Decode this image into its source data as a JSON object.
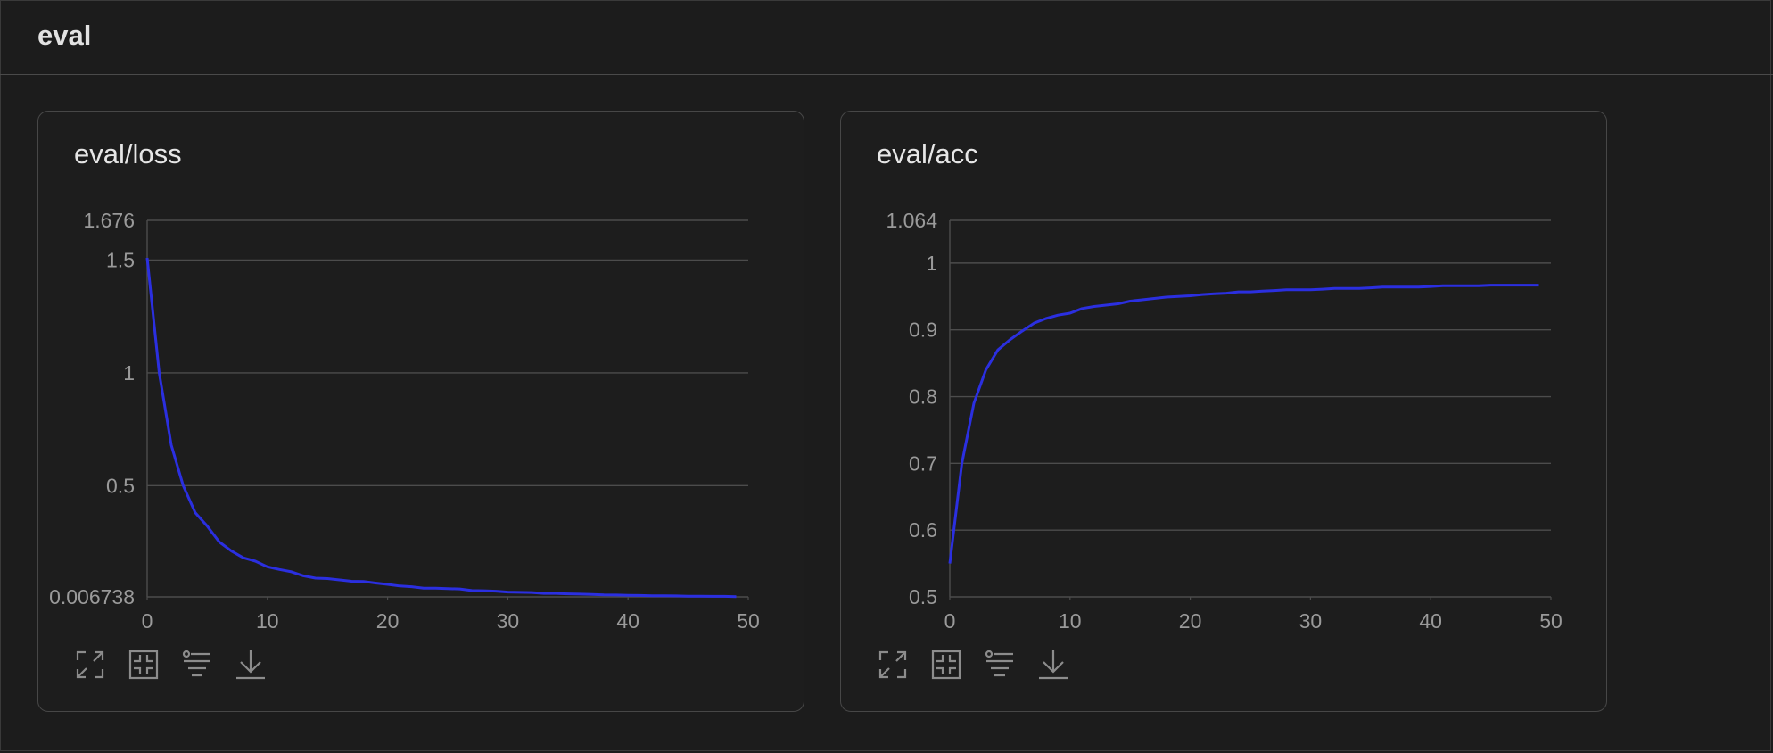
{
  "section": {
    "title": "eval"
  },
  "colors": {
    "line": "#2b2fe0",
    "grid": "#4c4c4c",
    "tick": "#9a9a9a",
    "background": "#1c1c1c"
  },
  "toolbar_icons": [
    "expand-icon",
    "fit-icon",
    "filter-icon",
    "download-icon"
  ],
  "chart_data": [
    {
      "type": "line",
      "title": "eval/loss",
      "xlabel": "",
      "ylabel": "",
      "xlim": [
        0,
        50
      ],
      "ylim": [
        0.006738,
        1.676
      ],
      "xticks": [
        "0",
        "10",
        "20",
        "30",
        "40",
        "50"
      ],
      "yticks": [
        {
          "value": 1.676,
          "label": "1.676"
        },
        {
          "value": 1.5,
          "label": "1.5"
        },
        {
          "value": 1,
          "label": "1"
        },
        {
          "value": 0.5,
          "label": "0.5"
        },
        {
          "value": 0.006738,
          "label": "0.006738"
        }
      ],
      "grid": true,
      "series": [
        {
          "x": [
            0,
            1,
            2,
            3,
            4,
            5,
            6,
            7,
            8,
            9,
            10,
            11,
            12,
            13,
            14,
            15,
            16,
            17,
            18,
            19,
            20,
            21,
            22,
            23,
            24,
            25,
            26,
            27,
            28,
            29,
            30,
            31,
            32,
            33,
            34,
            35,
            36,
            37,
            38,
            39,
            40,
            41,
            42,
            43,
            44,
            45,
            46,
            47,
            48,
            49
          ],
          "values": [
            1.51,
            1.0,
            0.68,
            0.5,
            0.38,
            0.32,
            0.25,
            0.21,
            0.18,
            0.165,
            0.14,
            0.128,
            0.118,
            0.1,
            0.09,
            0.088,
            0.082,
            0.076,
            0.075,
            0.068,
            0.062,
            0.055,
            0.052,
            0.045,
            0.045,
            0.043,
            0.042,
            0.035,
            0.034,
            0.032,
            0.028,
            0.027,
            0.026,
            0.022,
            0.022,
            0.02,
            0.019,
            0.018,
            0.016,
            0.015,
            0.014,
            0.013,
            0.012,
            0.012,
            0.011,
            0.01,
            0.01,
            0.009,
            0.009,
            0.008
          ]
        }
      ]
    },
    {
      "type": "line",
      "title": "eval/acc",
      "xlabel": "",
      "ylabel": "",
      "xlim": [
        0,
        50
      ],
      "ylim": [
        0.5,
        1.064
      ],
      "xticks": [
        "0",
        "10",
        "20",
        "30",
        "40",
        "50"
      ],
      "yticks": [
        {
          "value": 1.064,
          "label": "1.064"
        },
        {
          "value": 1,
          "label": "1"
        },
        {
          "value": 0.9,
          "label": "0.9"
        },
        {
          "value": 0.8,
          "label": "0.8"
        },
        {
          "value": 0.7,
          "label": "0.7"
        },
        {
          "value": 0.6,
          "label": "0.6"
        },
        {
          "value": 0.5,
          "label": "0.5"
        }
      ],
      "grid": true,
      "series": [
        {
          "x": [
            0,
            1,
            2,
            3,
            4,
            5,
            6,
            7,
            8,
            9,
            10,
            11,
            12,
            13,
            14,
            15,
            16,
            17,
            18,
            19,
            20,
            21,
            22,
            23,
            24,
            25,
            26,
            27,
            28,
            29,
            30,
            31,
            32,
            33,
            34,
            35,
            36,
            37,
            38,
            39,
            40,
            41,
            42,
            43,
            44,
            45,
            46,
            47,
            48,
            49
          ],
          "values": [
            0.55,
            0.7,
            0.79,
            0.84,
            0.87,
            0.885,
            0.898,
            0.91,
            0.917,
            0.922,
            0.925,
            0.932,
            0.935,
            0.937,
            0.939,
            0.943,
            0.945,
            0.947,
            0.949,
            0.95,
            0.951,
            0.953,
            0.954,
            0.955,
            0.957,
            0.957,
            0.958,
            0.959,
            0.96,
            0.96,
            0.96,
            0.961,
            0.962,
            0.962,
            0.962,
            0.963,
            0.964,
            0.964,
            0.964,
            0.964,
            0.965,
            0.966,
            0.966,
            0.966,
            0.966,
            0.967,
            0.967,
            0.967,
            0.967,
            0.967
          ]
        }
      ]
    }
  ]
}
